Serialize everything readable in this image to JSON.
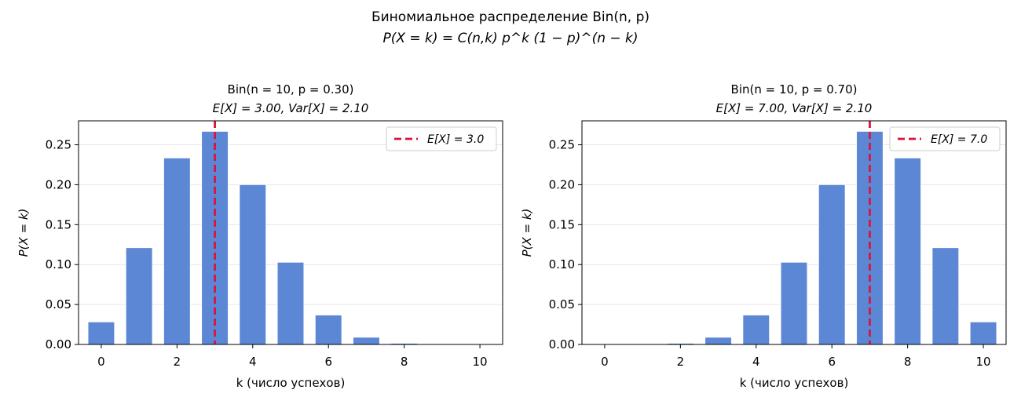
{
  "figure": {
    "suptitle_line1": "Биномиальное распределение Bin(n, p)",
    "suptitle_line2": "P(X = k) = C(n,k) p^k (1 − p)^(n − k)"
  },
  "colors": {
    "bar": "#5b87d5",
    "mean_line": "#dc143c",
    "grid": "#e6e6e6"
  },
  "chart_data": [
    {
      "type": "bar",
      "title_line1": "Bin(n = 10,  p = 0.30)",
      "title_line2": "E[X] = 3.00,  Var[X] = 2.10",
      "xlabel": "k (число успехов)",
      "ylabel": "P(X = k)",
      "x": [
        0,
        1,
        2,
        3,
        4,
        5,
        6,
        7,
        8,
        9,
        10
      ],
      "values": [
        0.0282,
        0.1211,
        0.2335,
        0.2668,
        0.2001,
        0.1029,
        0.0368,
        0.009,
        0.0014,
        0.0001,
        0.0
      ],
      "xlim": [
        -0.6,
        10.6
      ],
      "ylim": [
        0,
        0.28
      ],
      "xticks": [
        0,
        2,
        4,
        6,
        8,
        10
      ],
      "yticks": [
        0.0,
        0.05,
        0.1,
        0.15,
        0.2,
        0.25
      ],
      "ytick_labels": [
        "0.00",
        "0.05",
        "0.10",
        "0.15",
        "0.20",
        "0.25"
      ],
      "mean": 3.0,
      "legend_label": "E[X] = 3.0",
      "legend_position": "top-right",
      "grid": "y"
    },
    {
      "type": "bar",
      "title_line1": "Bin(n = 10,  p = 0.70)",
      "title_line2": "E[X] = 7.00,  Var[X] = 2.10",
      "xlabel": "k (число успехов)",
      "ylabel": "P(X = k)",
      "x": [
        0,
        1,
        2,
        3,
        4,
        5,
        6,
        7,
        8,
        9,
        10
      ],
      "values": [
        0.0,
        0.0001,
        0.0014,
        0.009,
        0.0368,
        0.1029,
        0.2001,
        0.2668,
        0.2335,
        0.1211,
        0.0282
      ],
      "xlim": [
        -0.6,
        10.6
      ],
      "ylim": [
        0,
        0.28
      ],
      "xticks": [
        0,
        2,
        4,
        6,
        8,
        10
      ],
      "yticks": [
        0.0,
        0.05,
        0.1,
        0.15,
        0.2,
        0.25
      ],
      "ytick_labels": [
        "0.00",
        "0.05",
        "0.10",
        "0.15",
        "0.20",
        "0.25"
      ],
      "mean": 7.0,
      "legend_label": "E[X] = 7.0",
      "legend_position": "top-right",
      "grid": "y"
    }
  ]
}
